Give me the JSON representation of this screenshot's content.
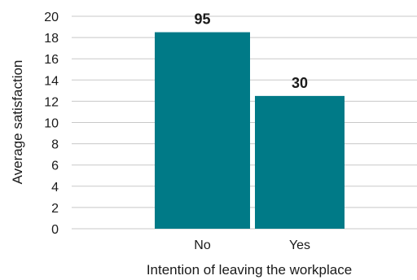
{
  "chart_data": {
    "type": "bar",
    "categories": [
      "No",
      "Yes"
    ],
    "values": [
      18.5,
      12.5
    ],
    "data_labels": [
      "95",
      "30"
    ],
    "xlabel": "Intention of leaving the workplace",
    "ylabel": "Average satisfaction",
    "ylim": [
      0,
      20
    ],
    "yticks": [
      "0",
      "2",
      "4",
      "6",
      "8",
      "10",
      "12",
      "14",
      "16",
      "18",
      "20"
    ],
    "grid": true,
    "legend": "none",
    "bar_color": "#007a87"
  }
}
